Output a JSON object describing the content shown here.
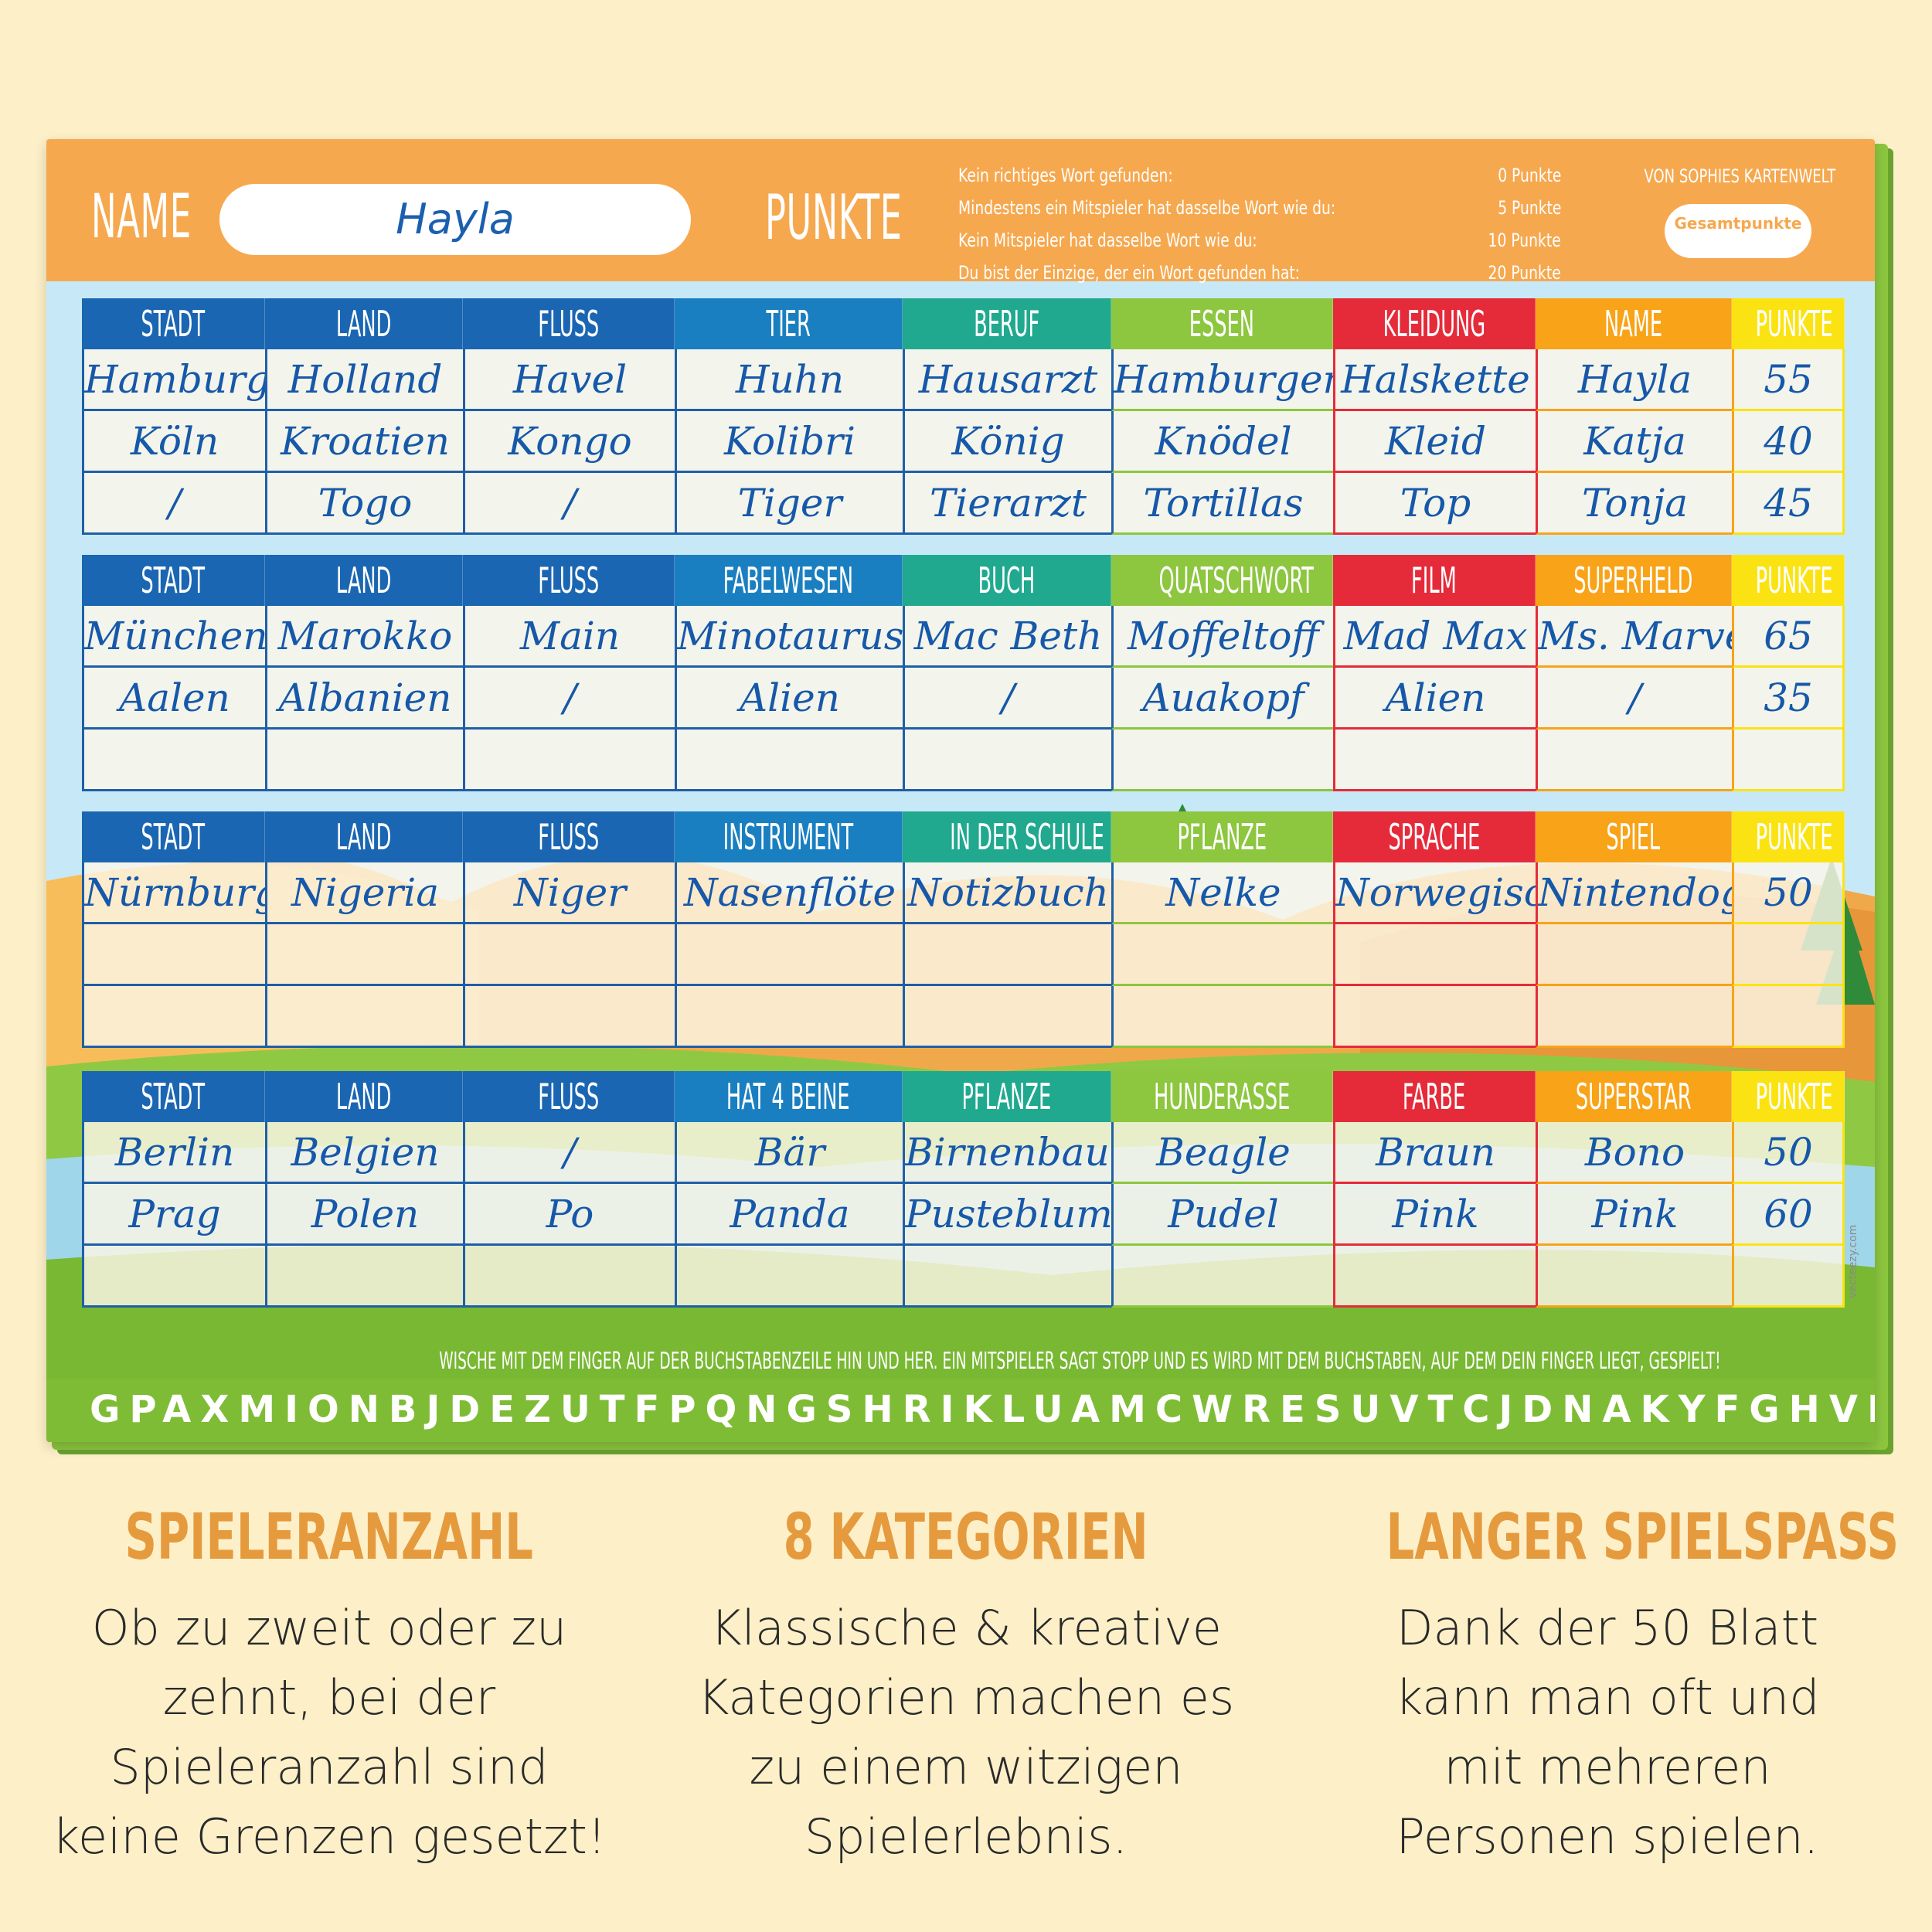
{
  "colors": {
    "background": "#fdf0c8",
    "header": "#f6a84f",
    "blue_dark": "#1f5fa8",
    "blue_mid": "#1a72b8",
    "teal": "#20a98f",
    "green": "#8dc63f",
    "red": "#e52b3a",
    "orange": "#f8a318",
    "yellow": "#fbe313",
    "handwriting": "#1658a9",
    "feature_title": "#e69a3e"
  },
  "header": {
    "name_label": "NAME",
    "name_value": "Hayla",
    "punkte_label": "PUNKTE",
    "brand": "VON SOPHIES KARTENWELT",
    "total_label": "Gesamtpunkte",
    "rules": [
      {
        "text": "Kein richtiges Wort gefunden:",
        "points": "0 Punkte"
      },
      {
        "text": "Mindestens ein Mitspieler hat dasselbe Wort wie du:",
        "points": "5 Punkte"
      },
      {
        "text": "Kein Mitspieler hat dasselbe Wort wie du:",
        "points": "10 Punkte"
      },
      {
        "text": "Du bist der Einzige, der ein Wort gefunden hat:",
        "points": "20 Punkte"
      }
    ]
  },
  "tables": [
    {
      "headers": [
        "STADT",
        "LAND",
        "FLUSS",
        "TIER",
        "BERUF",
        "ESSEN",
        "KLEIDUNG",
        "NAME",
        "PUNKTE"
      ],
      "rows": [
        [
          "Hamburg",
          "Holland",
          "Havel",
          "Huhn",
          "Hausarzt",
          "Hamburger",
          "Halskette",
          "Hayla",
          "55"
        ],
        [
          "Köln",
          "Kroatien",
          "Kongo",
          "Kolibri",
          "König",
          "Knödel",
          "Kleid",
          "Katja",
          "40"
        ],
        [
          "/",
          "Togo",
          "/",
          "Tiger",
          "Tierarzt",
          "Tortillas",
          "Top",
          "Tonja",
          "45"
        ]
      ]
    },
    {
      "headers": [
        "STADT",
        "LAND",
        "FLUSS",
        "FABELWESEN",
        "BUCH",
        "QUATSCHWORT",
        "FILM",
        "SUPERHELD",
        "PUNKTE"
      ],
      "rows": [
        [
          "München",
          "Marokko",
          "Main",
          "Minotaurus",
          "Mac Beth",
          "Moffeltoff",
          "Mad Max",
          "Ms. Marvel",
          "65"
        ],
        [
          "Aalen",
          "Albanien",
          "/",
          "Alien",
          "/",
          "Auakopf",
          "Alien",
          "/",
          "35"
        ],
        [
          "",
          "",
          "",
          "",
          "",
          "",
          "",
          "",
          ""
        ]
      ]
    },
    {
      "headers": [
        "STADT",
        "LAND",
        "FLUSS",
        "INSTRUMENT",
        "IN DER SCHULE",
        "PFLANZE",
        "SPRACHE",
        "SPIEL",
        "PUNKTE"
      ],
      "rows": [
        [
          "Nürnburg",
          "Nigeria",
          "Niger",
          "Nasenflöte",
          "Notizbuch",
          "Nelke",
          "Norwegisch",
          "Nintendogs",
          "50"
        ],
        [
          "",
          "",
          "",
          "",
          "",
          "",
          "",
          "",
          ""
        ],
        [
          "",
          "",
          "",
          "",
          "",
          "",
          "",
          "",
          ""
        ]
      ]
    },
    {
      "headers": [
        "STADT",
        "LAND",
        "FLUSS",
        "HAT 4 BEINE",
        "PFLANZE",
        "HUNDERASSE",
        "FARBE",
        "SUPERSTAR",
        "PUNKTE"
      ],
      "rows": [
        [
          "Berlin",
          "Belgien",
          "/",
          "Bär",
          "Birnenbaum",
          "Beagle",
          "Braun",
          "Bono",
          "50"
        ],
        [
          "Prag",
          "Polen",
          "Po",
          "Panda",
          "Pusteblume",
          "Pudel",
          "Pink",
          "Pink",
          "60"
        ],
        [
          "",
          "",
          "",
          "",
          "",
          "",
          "",
          "",
          ""
        ]
      ]
    }
  ],
  "swipe_instruction": "WISCHE MIT DEM FINGER AUF DER BUCHSTABENZEILE HIN UND HER. EIN MITSPIELER SAGT STOPP UND ES WIRD MIT DEM BUCHSTABEN, AUF DEM DEIN FINGER LIEGT, GESPIELT!",
  "letter_row": "GPAXMIONBJDEZUTFPQNGSHRIKLUAMCWRESUVTCJDNAKYFGHVBEMISORZ",
  "credit": "vecteezy.com",
  "features": [
    {
      "title": "SPIELERANZAHL",
      "lines": [
        "Ob zu zweit oder zu",
        "zehnt, bei der",
        "Spieleranzahl sind",
        "keine Grenzen gesetzt!"
      ]
    },
    {
      "title": "8 KATEGORIEN",
      "lines": [
        "Klassische & kreative",
        "Kategorien machen es",
        "zu einem witzigen",
        "Spielerlebnis."
      ]
    },
    {
      "title": "LANGER SPIELSPASS",
      "lines": [
        "Dank der 50 Blatt",
        "kann man oft und",
        "mit mehreren",
        "Personen spielen."
      ]
    }
  ]
}
